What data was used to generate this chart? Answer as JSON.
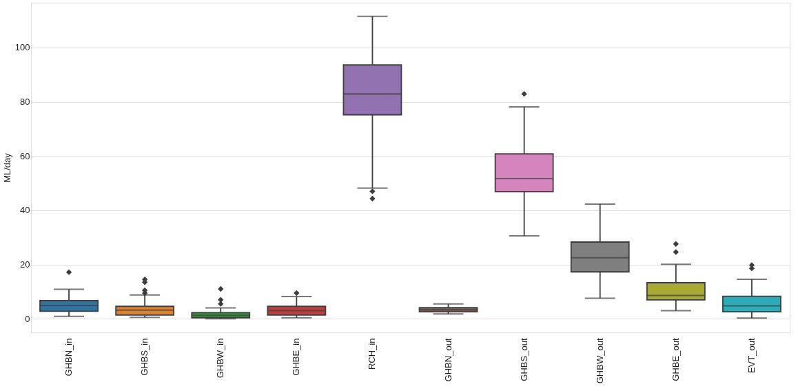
{
  "chart_data": {
    "type": "box",
    "ylabel": "ML/day",
    "categories": [
      "GHBN_in",
      "GHBS_in",
      "GHBW_in",
      "GHBE_in",
      "RCH_in",
      "GHBN_out",
      "GHBS_out",
      "GHBW_out",
      "GHBE_out",
      "EVT_out"
    ],
    "colors": [
      "#3274a1",
      "#e1812c",
      "#3a923a",
      "#c03d3e",
      "#9372b2",
      "#845b53",
      "#d684bd",
      "#7f7f7f",
      "#a9aa35",
      "#2eabb8"
    ],
    "boxes": [
      {
        "low": 0.9,
        "q1": 2.8,
        "median": 4.9,
        "q3": 6.7,
        "high": 10.9,
        "outliers": [
          17.2
        ]
      },
      {
        "low": 0.5,
        "q1": 1.4,
        "median": 3.2,
        "q3": 4.6,
        "high": 8.8,
        "outliers": [
          9.5,
          10.5,
          13.5,
          14.5
        ]
      },
      {
        "low": 0.0,
        "q1": 0.4,
        "median": 1.3,
        "q3": 2.3,
        "high": 4.0,
        "outliers": [
          5.5,
          7.0,
          11.0
        ]
      },
      {
        "low": 0.4,
        "q1": 1.4,
        "median": 3.0,
        "q3": 4.6,
        "high": 8.2,
        "outliers": [
          9.5
        ]
      },
      {
        "low": 48.2,
        "q1": 75.2,
        "median": 82.9,
        "q3": 93.6,
        "high": 111.5,
        "outliers": [
          47.0,
          44.3
        ]
      },
      {
        "low": 1.8,
        "q1": 2.6,
        "median": 3.3,
        "q3": 4.1,
        "high": 5.5
      },
      {
        "low": 30.6,
        "q1": 46.9,
        "median": 51.7,
        "q3": 60.8,
        "high": 78.1,
        "outliers": [
          82.9
        ]
      },
      {
        "low": 7.6,
        "q1": 17.3,
        "median": 22.5,
        "q3": 28.3,
        "high": 42.3
      },
      {
        "low": 3.0,
        "q1": 7.0,
        "median": 8.6,
        "q3": 13.3,
        "high": 20.1,
        "outliers": [
          24.6,
          27.6
        ]
      },
      {
        "low": 0.3,
        "q1": 2.6,
        "median": 4.8,
        "q3": 8.3,
        "high": 14.6,
        "outliers": [
          18.6,
          19.8
        ]
      }
    ],
    "ylim": [
      -5,
      116.5
    ],
    "yticks": [
      0,
      20,
      40,
      60,
      80,
      100
    ],
    "grid": "y"
  }
}
